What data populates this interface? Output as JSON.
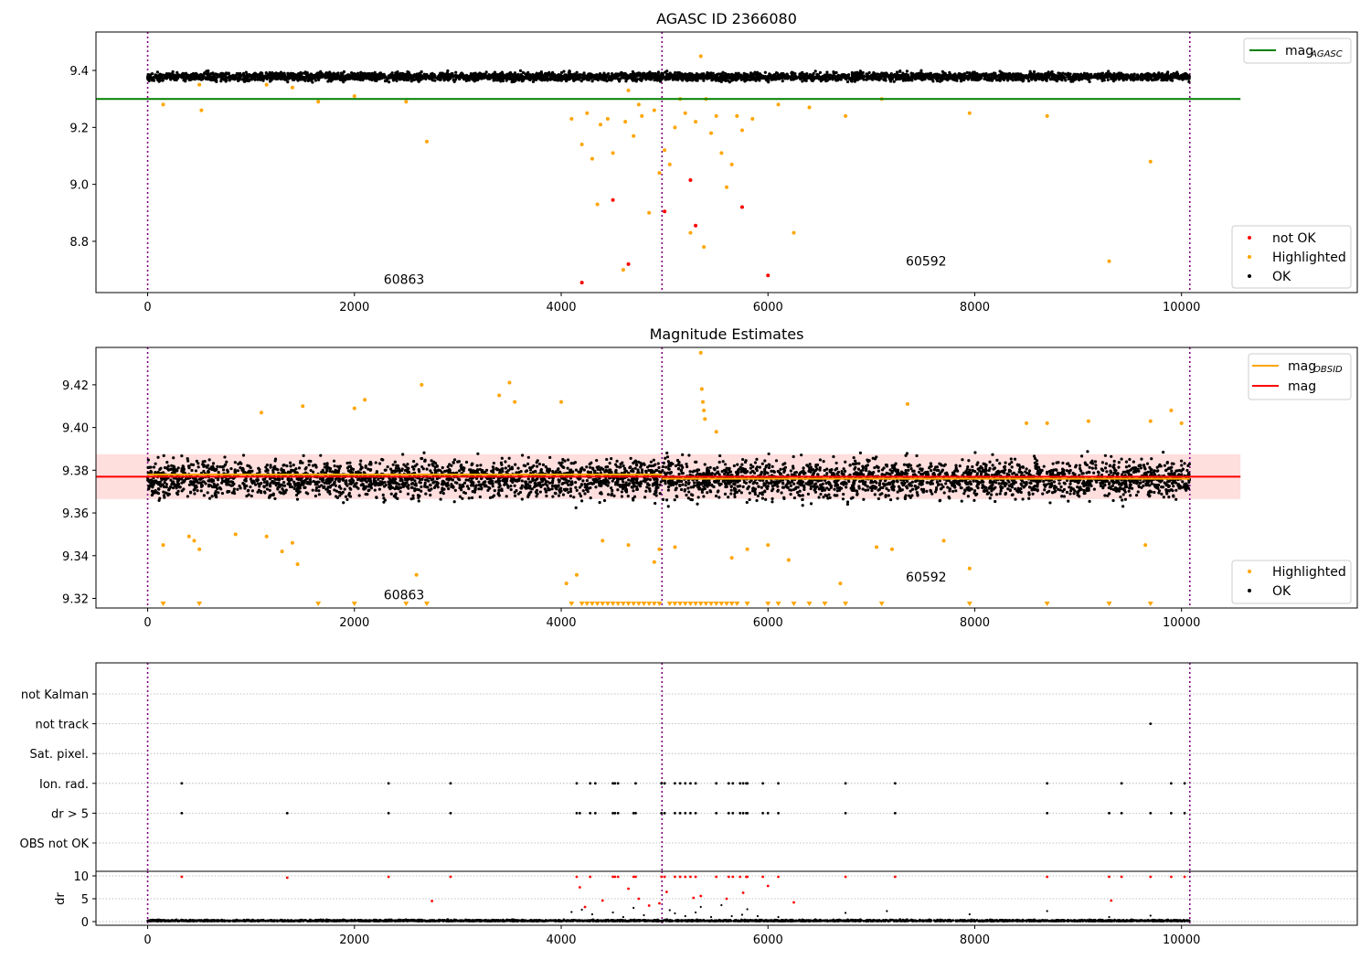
{
  "chart_data": [
    {
      "type": "scatter",
      "title": "AGASC ID 2366080",
      "xlabel": "",
      "ylabel": "",
      "xlim": [
        -500,
        11700
      ],
      "ylim": [
        8.62,
        9.535
      ],
      "xticks": [
        0,
        2000,
        4000,
        6000,
        8000,
        10000
      ],
      "yticks": [
        8.8,
        9.0,
        9.2,
        9.4
      ],
      "ytick_labels": [
        "8.8",
        "9.0",
        "9.2",
        "9.4"
      ],
      "vlines": [
        0,
        4975,
        10080
      ],
      "hline": {
        "name": "mag_AGASC",
        "value": 9.3,
        "x": [
          -500,
          10570
        ],
        "color": "#008000"
      },
      "annotations": [
        {
          "text": "60863",
          "x": 2480,
          "y": 8.65
        },
        {
          "text": "60592",
          "x": 7530,
          "y": 8.715
        }
      ],
      "legend_top": {
        "position": "top-right",
        "entries": [
          {
            "label": "mag",
            "sub": "AGASC",
            "color": "#008000"
          }
        ]
      },
      "legend_bottom": {
        "position": "bottom-right",
        "entries": [
          {
            "label": "not OK",
            "color": "#ff0000"
          },
          {
            "label": "Highlighted",
            "color": "#ffa500"
          },
          {
            "label": "OK",
            "color": "#000000"
          }
        ]
      },
      "ok_band": {
        "x": [
          0,
          10080
        ],
        "y_center": 9.378,
        "y_spread": 0.014
      },
      "highlighted_points": [
        [
          150,
          9.28
        ],
        [
          500,
          9.35
        ],
        [
          520,
          9.26
        ],
        [
          1150,
          9.35
        ],
        [
          1400,
          9.34
        ],
        [
          1650,
          9.29
        ],
        [
          2000,
          9.31
        ],
        [
          2500,
          9.29
        ],
        [
          2700,
          9.15
        ],
        [
          4100,
          9.23
        ],
        [
          4200,
          9.14
        ],
        [
          4250,
          9.25
        ],
        [
          4300,
          9.09
        ],
        [
          4350,
          8.93
        ],
        [
          4380,
          9.21
        ],
        [
          4450,
          9.23
        ],
        [
          4500,
          9.11
        ],
        [
          4600,
          8.7
        ],
        [
          4620,
          9.22
        ],
        [
          4650,
          9.33
        ],
        [
          4700,
          9.17
        ],
        [
          4750,
          9.28
        ],
        [
          4780,
          9.24
        ],
        [
          4850,
          8.9
        ],
        [
          4900,
          9.26
        ],
        [
          4950,
          9.04
        ],
        [
          5000,
          9.12
        ],
        [
          5050,
          9.07
        ],
        [
          5100,
          9.2
        ],
        [
          5150,
          9.3
        ],
        [
          5200,
          9.25
        ],
        [
          5250,
          8.83
        ],
        [
          5300,
          9.22
        ],
        [
          5350,
          9.45
        ],
        [
          5380,
          8.78
        ],
        [
          5400,
          9.3
        ],
        [
          5450,
          9.18
        ],
        [
          5500,
          9.24
        ],
        [
          5550,
          9.11
        ],
        [
          5600,
          8.99
        ],
        [
          5650,
          9.07
        ],
        [
          5700,
          9.24
        ],
        [
          5750,
          9.19
        ],
        [
          5850,
          9.23
        ],
        [
          6100,
          9.28
        ],
        [
          6250,
          8.83
        ],
        [
          6400,
          9.27
        ],
        [
          6750,
          9.24
        ],
        [
          7100,
          9.3
        ],
        [
          7950,
          9.25
        ],
        [
          8700,
          9.24
        ],
        [
          9300,
          8.73
        ],
        [
          9700,
          9.08
        ]
      ],
      "notok_points": [
        [
          4200,
          8.655
        ],
        [
          4500,
          8.945
        ],
        [
          4650,
          8.72
        ],
        [
          5000,
          8.905
        ],
        [
          5250,
          9.015
        ],
        [
          5300,
          8.855
        ],
        [
          5750,
          8.92
        ],
        [
          6000,
          8.68
        ]
      ]
    },
    {
      "type": "scatter",
      "title": "Magnitude Estimates",
      "xlabel": "",
      "ylabel": "",
      "xlim": [
        -500,
        11700
      ],
      "ylim": [
        9.3155,
        9.4375
      ],
      "xticks": [
        0,
        2000,
        4000,
        6000,
        8000,
        10000
      ],
      "yticks": [
        9.32,
        9.34,
        9.36,
        9.38,
        9.4,
        9.42
      ],
      "ytick_labels": [
        "9.32",
        "9.34",
        "9.36",
        "9.38",
        "9.40",
        "9.42"
      ],
      "vlines": [
        0,
        4975,
        10080
      ],
      "mag_line": {
        "name": "mag",
        "value": 9.377,
        "x": [
          -500,
          10570
        ],
        "color": "#ff0000"
      },
      "mag_band": {
        "low": 9.3665,
        "high": 9.3875,
        "color": "#ffb6b6"
      },
      "obsid_segments": [
        {
          "x": [
            0,
            4975
          ],
          "value": 9.378
        },
        {
          "x": [
            4975,
            10080
          ],
          "value": 9.376
        }
      ],
      "annotations": [
        {
          "text": "60863",
          "x": 2480,
          "y": 9.3195
        },
        {
          "text": "60592",
          "x": 7530,
          "y": 9.328
        }
      ],
      "legend_top": {
        "position": "top-right",
        "entries": [
          {
            "label": "mag",
            "sub": "OBSID",
            "color": "#ffa500"
          },
          {
            "label": "mag",
            "sub": "",
            "color": "#ff0000"
          }
        ]
      },
      "legend_bottom": {
        "position": "bottom-right",
        "entries": [
          {
            "label": "Highlighted",
            "color": "#ffa500"
          },
          {
            "label": "OK",
            "color": "#000000"
          }
        ]
      },
      "ok_band": {
        "x": [
          0,
          10080
        ],
        "y_center": 9.376,
        "y_spread": 0.0085
      },
      "highlighted_points": [
        [
          150,
          9.345
        ],
        [
          400,
          9.349
        ],
        [
          450,
          9.347
        ],
        [
          500,
          9.343
        ],
        [
          850,
          9.35
        ],
        [
          1100,
          9.407
        ],
        [
          1150,
          9.349
        ],
        [
          1300,
          9.342
        ],
        [
          1400,
          9.346
        ],
        [
          1450,
          9.336
        ],
        [
          1500,
          9.41
        ],
        [
          2000,
          9.409
        ],
        [
          2100,
          9.413
        ],
        [
          2600,
          9.331
        ],
        [
          2650,
          9.42
        ],
        [
          3400,
          9.415
        ],
        [
          3500,
          9.421
        ],
        [
          3550,
          9.412
        ],
        [
          4000,
          9.412
        ],
        [
          4050,
          9.327
        ],
        [
          4150,
          9.331
        ],
        [
          4400,
          9.347
        ],
        [
          4650,
          9.345
        ],
        [
          4900,
          9.337
        ],
        [
          4950,
          9.343
        ],
        [
          5350,
          9.435
        ],
        [
          5360,
          9.418
        ],
        [
          5370,
          9.412
        ],
        [
          5380,
          9.408
        ],
        [
          5390,
          9.404
        ],
        [
          5100,
          9.344
        ],
        [
          5500,
          9.398
        ],
        [
          5650,
          9.339
        ],
        [
          5800,
          9.343
        ],
        [
          6000,
          9.345
        ],
        [
          6200,
          9.338
        ],
        [
          6700,
          9.327
        ],
        [
          7050,
          9.344
        ],
        [
          7200,
          9.343
        ],
        [
          7350,
          9.411
        ],
        [
          7700,
          9.347
        ],
        [
          7950,
          9.334
        ],
        [
          8500,
          9.402
        ],
        [
          8700,
          9.402
        ],
        [
          9100,
          9.403
        ],
        [
          9650,
          9.345
        ],
        [
          9700,
          9.403
        ],
        [
          9900,
          9.408
        ],
        [
          10000,
          9.402
        ]
      ],
      "low_markers_x": [
        150,
        500,
        1650,
        2000,
        2500,
        2700,
        4100,
        4200,
        4250,
        4300,
        4350,
        4400,
        4450,
        4500,
        4550,
        4600,
        4650,
        4700,
        4750,
        4800,
        4850,
        4900,
        4950,
        5050,
        5100,
        5150,
        5200,
        5250,
        5300,
        5350,
        5400,
        5450,
        5500,
        5550,
        5600,
        5650,
        5700,
        5800,
        6000,
        6100,
        6250,
        6400,
        6550,
        6750,
        7100,
        7950,
        8700,
        9300,
        9700
      ]
    },
    {
      "type": "scatter",
      "title": "",
      "xlabel": "",
      "xlim": [
        -500,
        11700
      ],
      "xticks": [
        0,
        2000,
        4000,
        6000,
        8000,
        10000
      ],
      "vlines": [
        0,
        4975,
        10080
      ],
      "flag_rows": [
        "not Kalman",
        "not track",
        "Sat. pixel.",
        "Ion. rad.",
        "dr > 5",
        "OBS not OK"
      ],
      "flag_points": {
        "not track": [
          9700
        ],
        "Ion. rad.": [
          330,
          2330,
          2930,
          4150,
          4280,
          4330,
          4500,
          4520,
          4550,
          4720,
          4970,
          5000,
          5100,
          5150,
          5200,
          5250,
          5300,
          5500,
          5620,
          5660,
          5730,
          5760,
          5790,
          5800,
          5950,
          6100,
          6750,
          7230,
          8700,
          9420,
          9900,
          10030
        ],
        "dr > 5": [
          330,
          1350,
          2330,
          2930,
          4150,
          4180,
          4280,
          4330,
          4500,
          4520,
          4550,
          4700,
          4720,
          4970,
          5000,
          5100,
          5150,
          5200,
          5250,
          5300,
          5500,
          5620,
          5660,
          5730,
          5760,
          5790,
          5800,
          5950,
          6000,
          6100,
          6750,
          7230,
          8700,
          9300,
          9420,
          9700,
          9900,
          10030
        ]
      },
      "dr_panel": {
        "ylabel": "dr",
        "ylim": [
          -0.8,
          11.0
        ],
        "yticks": [
          0,
          5,
          10
        ],
        "ytick_labels": [
          "0",
          "5",
          "10"
        ],
        "red_points": [
          [
            330,
            9.8
          ],
          [
            1350,
            9.6
          ],
          [
            2330,
            9.8
          ],
          [
            2750,
            4.5
          ],
          [
            2930,
            9.8
          ],
          [
            4150,
            9.8
          ],
          [
            4180,
            7.5
          ],
          [
            4230,
            3.2
          ],
          [
            4280,
            9.8
          ],
          [
            4400,
            4.6
          ],
          [
            4500,
            9.8
          ],
          [
            4520,
            9.8
          ],
          [
            4550,
            9.8
          ],
          [
            4650,
            7.2
          ],
          [
            4700,
            9.8
          ],
          [
            4720,
            9.8
          ],
          [
            4750,
            5.0
          ],
          [
            4850,
            3.5
          ],
          [
            4950,
            4.0
          ],
          [
            4970,
            9.8
          ],
          [
            5000,
            9.8
          ],
          [
            5020,
            6.5
          ],
          [
            5100,
            9.8
          ],
          [
            5150,
            9.8
          ],
          [
            5200,
            9.8
          ],
          [
            5250,
            9.8
          ],
          [
            5280,
            5.2
          ],
          [
            5300,
            9.8
          ],
          [
            5350,
            5.6
          ],
          [
            5500,
            9.8
          ],
          [
            5600,
            5.0
          ],
          [
            5620,
            9.8
          ],
          [
            5660,
            9.8
          ],
          [
            5730,
            9.8
          ],
          [
            5760,
            6.3
          ],
          [
            5790,
            9.8
          ],
          [
            5800,
            9.8
          ],
          [
            5950,
            9.8
          ],
          [
            6000,
            7.8
          ],
          [
            6100,
            9.8
          ],
          [
            6250,
            4.2
          ],
          [
            6750,
            9.8
          ],
          [
            7230,
            9.8
          ],
          [
            8700,
            9.8
          ],
          [
            9300,
            9.8
          ],
          [
            9320,
            4.6
          ],
          [
            9420,
            9.8
          ],
          [
            9700,
            9.8
          ],
          [
            9900,
            9.8
          ],
          [
            10030,
            9.8
          ]
        ],
        "black_spike_points": [
          [
            4100,
            2.1
          ],
          [
            4200,
            2.6
          ],
          [
            4300,
            1.6
          ],
          [
            4500,
            2.0
          ],
          [
            4600,
            1.0
          ],
          [
            4700,
            3.0
          ],
          [
            4800,
            1.4
          ],
          [
            5050,
            2.5
          ],
          [
            5100,
            1.8
          ],
          [
            5200,
            1.2
          ],
          [
            5300,
            2.0
          ],
          [
            5350,
            3.2
          ],
          [
            5450,
            1.0
          ],
          [
            5550,
            3.6
          ],
          [
            5650,
            1.2
          ],
          [
            5750,
            1.5
          ],
          [
            5800,
            2.7
          ],
          [
            5900,
            1.2
          ],
          [
            6100,
            1.0
          ],
          [
            6750,
            1.9
          ],
          [
            7150,
            2.3
          ],
          [
            7950,
            1.6
          ],
          [
            8700,
            2.3
          ],
          [
            9300,
            1.0
          ],
          [
            9700,
            1.3
          ]
        ]
      }
    }
  ]
}
